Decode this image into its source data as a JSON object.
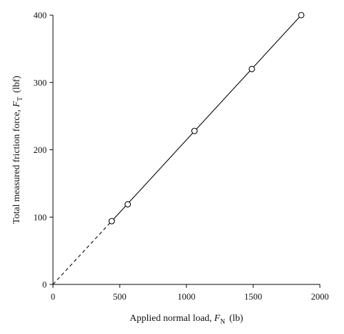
{
  "chart_data": {
    "type": "scatter",
    "xlabel": {
      "prefix": "Applied normal load, ",
      "var": "F",
      "sub": "N",
      "unit": "(lb)"
    },
    "ylabel": {
      "prefix": "Total measured friction force, ",
      "var": "F",
      "sub": "T",
      "unit": "(lbf)"
    },
    "xlim": [
      0,
      2000
    ],
    "ylim": [
      0,
      400
    ],
    "xticks": [
      0,
      500,
      1000,
      1500,
      2000
    ],
    "yticks": [
      0,
      100,
      200,
      300,
      400
    ],
    "series": [
      {
        "marker": "open-circle",
        "x": [
          440,
          560,
          1060,
          1490,
          1860
        ],
        "y": [
          94,
          119,
          228,
          320,
          400
        ]
      }
    ],
    "fit_line": {
      "solid": {
        "x": [
          440,
          1860
        ],
        "y": [
          94,
          400
        ]
      },
      "dashed": {
        "x": [
          0,
          440
        ],
        "y": [
          0,
          94
        ]
      }
    },
    "grid": false,
    "colors": {
      "line": "#000000",
      "marker_fill": "#ffffff"
    }
  }
}
